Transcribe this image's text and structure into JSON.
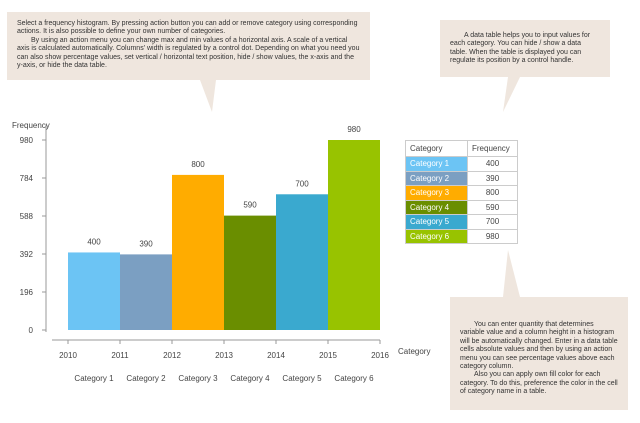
{
  "notes": {
    "histogram": [
      "Select a frequency histogram. By pressing action button you can add or remove category using corresponding actions. It is also possible to define your own number of categories.",
      "By using an action menu you can change max and min values of a horizontal axis. A scale of a vertical axis is calculated automatically. Columns' width is regulated by a control dot. Depending on what you need you can also show percentage values, set vertical / horizontal text position, hide / show values, the x-axis and the y-axis, or hide the data table."
    ],
    "table": [
      "A data table helps you to input values for each category. You can hide / show a data table. When the table is displayed you can regulate its position by a control handle."
    ],
    "values": [
      "You can enter quantity that determines variable value and a column height in a histogram will be automatically changed. Enter in a data table cells absolute values and then by using an action menu you can see percentage values above each category column.",
      "Also you can apply own fill color for each category. To do this, preference the color in the cell of category name in a table."
    ]
  },
  "chart_data": {
    "type": "bar",
    "ylabel": "Frequency",
    "xlabel": "Category",
    "ylim": [
      0,
      980
    ],
    "yticks": [
      "0",
      "196",
      "392",
      "588",
      "784",
      "980"
    ],
    "xticks": [
      "2010",
      "2011",
      "2012",
      "2013",
      "2014",
      "2015",
      "2016"
    ],
    "categories": [
      "Category 1",
      "Category 2",
      "Category 3",
      "Category 4",
      "Category 5",
      "Category 6"
    ],
    "values": [
      400,
      390,
      800,
      590,
      700,
      980
    ],
    "colors": [
      "#6cc4f4",
      "#7b9fc2",
      "#ffac00",
      "#6a8e00",
      "#3aa9cf",
      "#98c300"
    ],
    "table_headers": [
      "Category",
      "Frequency"
    ]
  }
}
